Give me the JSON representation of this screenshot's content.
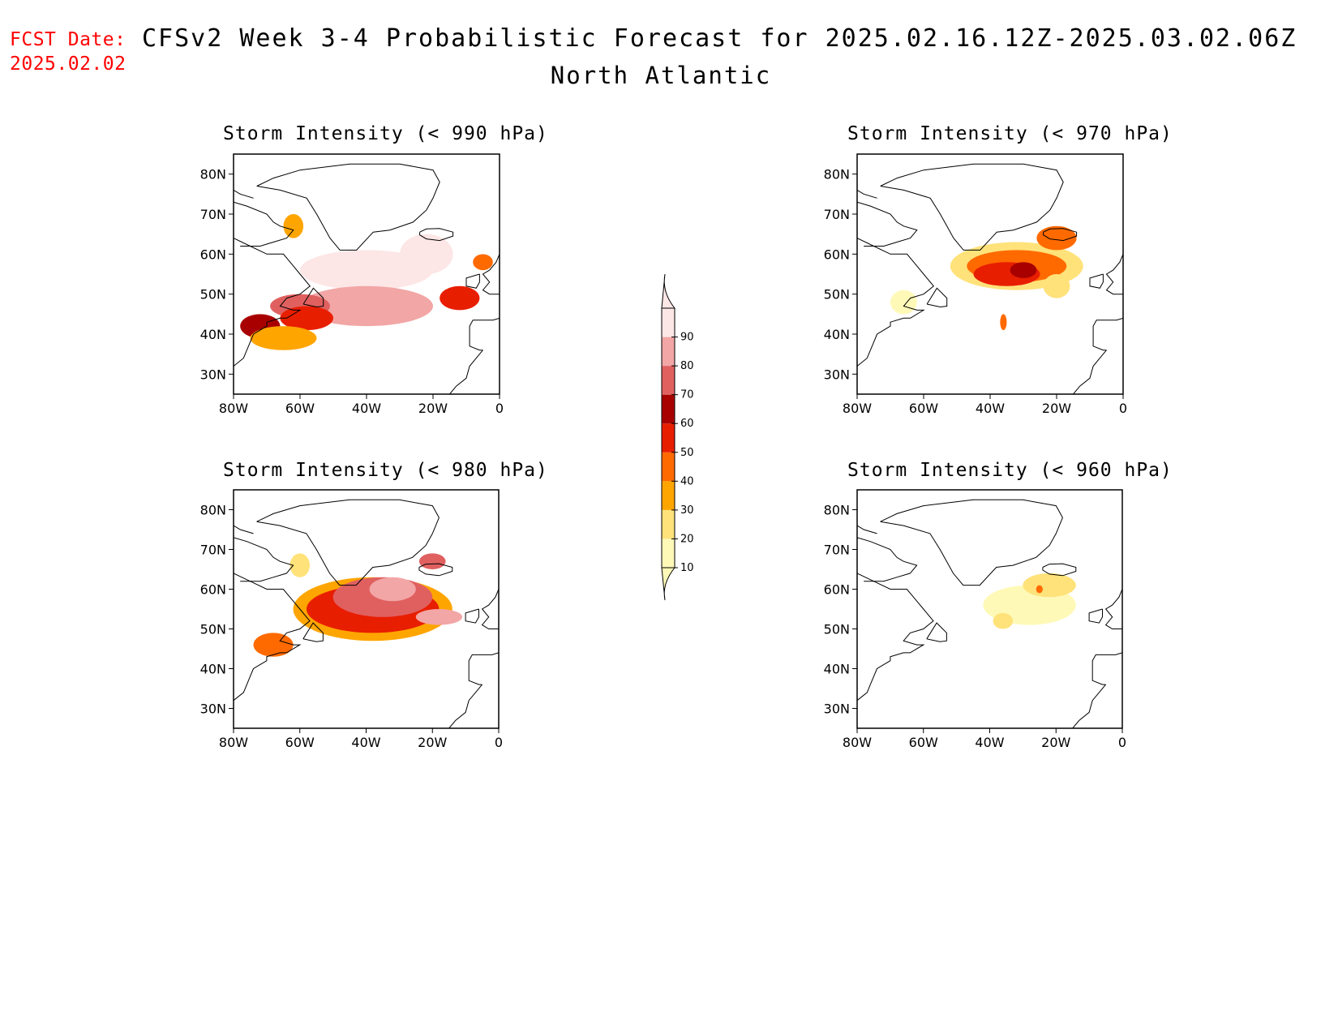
{
  "header": {
    "fcst_label": "FCST Date:",
    "fcst_date": "2025.02.02",
    "title": "CFSv2 Week 3-4 Probabilistic Forecast for 2025.02.16.12Z-2025.03.02.06Z",
    "region": "North Atlantic"
  },
  "axes": {
    "lat_labels": [
      "80N",
      "70N",
      "60N",
      "50N",
      "40N",
      "30N"
    ],
    "lat_values": [
      80,
      70,
      60,
      50,
      40,
      30
    ],
    "lon_labels": [
      "80W",
      "60W",
      "40W",
      "20W",
      "0"
    ],
    "lon_values": [
      -80,
      -60,
      -40,
      -20,
      0
    ],
    "lat_range": [
      25,
      85
    ],
    "lon_range": [
      -80,
      0
    ]
  },
  "colorbar": {
    "labels": [
      "10",
      "20",
      "30",
      "40",
      "50",
      "60",
      "70",
      "80",
      "90"
    ],
    "levels": [
      10,
      20,
      30,
      40,
      50,
      60,
      70,
      80,
      90
    ],
    "colors": [
      "#fff9b8",
      "#ffe27a",
      "#ffa500",
      "#ff6a00",
      "#e81e00",
      "#a80000",
      "#e06060",
      "#f2a6a6",
      "#fde6e6"
    ]
  },
  "panels": [
    {
      "id": "p990",
      "title": "Storm Intensity (< 990 hPa)",
      "blobs": [
        {
          "lon": -40,
          "lat": 56,
          "rx": 20,
          "ry": 5,
          "level": 90
        },
        {
          "lon": -22,
          "lat": 60,
          "rx": 8,
          "ry": 5,
          "level": 90
        },
        {
          "lon": -40,
          "lat": 47,
          "rx": 20,
          "ry": 5,
          "level": 80
        },
        {
          "lon": -60,
          "lat": 47,
          "rx": 9,
          "ry": 3,
          "level": 70
        },
        {
          "lon": -72,
          "lat": 42,
          "rx": 6,
          "ry": 3,
          "level": 60
        },
        {
          "lon": -58,
          "lat": 44,
          "rx": 8,
          "ry": 3,
          "level": 50
        },
        {
          "lon": -12,
          "lat": 49,
          "rx": 6,
          "ry": 3,
          "level": 50
        },
        {
          "lon": -65,
          "lat": 39,
          "rx": 10,
          "ry": 3,
          "level": 30
        },
        {
          "lon": -62,
          "lat": 67,
          "rx": 3,
          "ry": 3,
          "level": 30
        },
        {
          "lon": -5,
          "lat": 58,
          "rx": 3,
          "ry": 2,
          "level": 40
        }
      ]
    },
    {
      "id": "p970",
      "title": "Storm Intensity (< 970 hPa)",
      "blobs": [
        {
          "lon": -32,
          "lat": 57,
          "rx": 20,
          "ry": 6,
          "level": 20
        },
        {
          "lon": -32,
          "lat": 57,
          "rx": 15,
          "ry": 4,
          "level": 40
        },
        {
          "lon": -20,
          "lat": 64,
          "rx": 6,
          "ry": 3,
          "level": 40
        },
        {
          "lon": -35,
          "lat": 55,
          "rx": 10,
          "ry": 3,
          "level": 50
        },
        {
          "lon": -30,
          "lat": 56,
          "rx": 4,
          "ry": 2,
          "level": 60
        },
        {
          "lon": -66,
          "lat": 48,
          "rx": 4,
          "ry": 3,
          "level": 10
        },
        {
          "lon": -20,
          "lat": 52,
          "rx": 4,
          "ry": 3,
          "level": 20
        },
        {
          "lon": -36,
          "lat": 43,
          "rx": 1,
          "ry": 2,
          "level": 40
        }
      ]
    },
    {
      "id": "p980",
      "title": "Storm Intensity (< 980 hPa)",
      "blobs": [
        {
          "lon": -38,
          "lat": 55,
          "rx": 24,
          "ry": 8,
          "level": 30
        },
        {
          "lon": -38,
          "lat": 55,
          "rx": 20,
          "ry": 6,
          "level": 50
        },
        {
          "lon": -35,
          "lat": 58,
          "rx": 15,
          "ry": 5,
          "level": 70
        },
        {
          "lon": -32,
          "lat": 60,
          "rx": 7,
          "ry": 3,
          "level": 80
        },
        {
          "lon": -18,
          "lat": 53,
          "rx": 7,
          "ry": 2,
          "level": 80
        },
        {
          "lon": -68,
          "lat": 46,
          "rx": 6,
          "ry": 3,
          "level": 40
        },
        {
          "lon": -20,
          "lat": 67,
          "rx": 4,
          "ry": 2,
          "level": 70
        },
        {
          "lon": -60,
          "lat": 66,
          "rx": 3,
          "ry": 3,
          "level": 20
        }
      ]
    },
    {
      "id": "p960",
      "title": "Storm Intensity (< 960 hPa)",
      "blobs": [
        {
          "lon": -28,
          "lat": 56,
          "rx": 14,
          "ry": 5,
          "level": 10
        },
        {
          "lon": -22,
          "lat": 61,
          "rx": 8,
          "ry": 3,
          "level": 20
        },
        {
          "lon": -25,
          "lat": 60,
          "rx": 1,
          "ry": 1,
          "level": 40
        },
        {
          "lon": -36,
          "lat": 52,
          "rx": 3,
          "ry": 2,
          "level": 20
        }
      ]
    }
  ]
}
